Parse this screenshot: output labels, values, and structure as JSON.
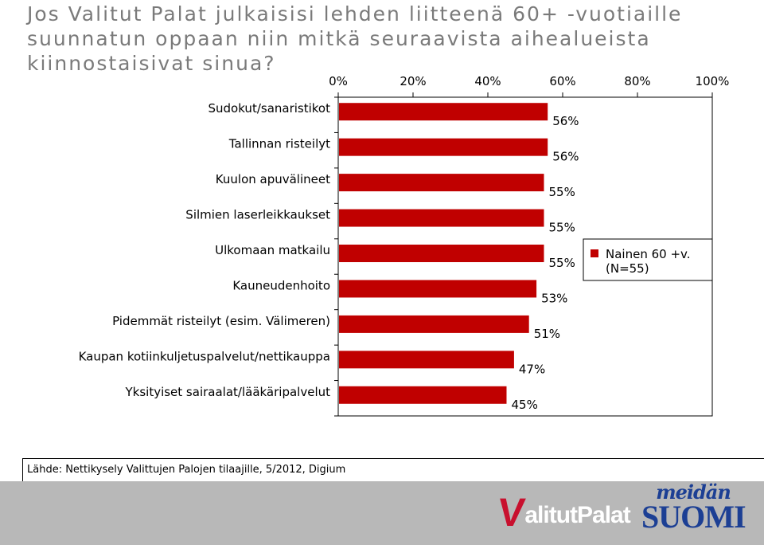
{
  "title": {
    "line1": "Jos Valitut Palat julkaisisi lehden liitteenä 60+ -vuotiaille",
    "line2": "suunnatun oppaan niin mitkä seuraavista aihealueista",
    "line3": "kiinnostaisivat sinua?"
  },
  "chart_data": {
    "type": "bar",
    "orientation": "horizontal",
    "title": "Jos Valitut Palat julkaisisi lehden liitteenä 60+ -vuotiaille suunnatun oppaan niin mitkä seuraavista aihealueista kiinnostaisivat sinua?",
    "categories": [
      "Sudokut/sanaristikot",
      "Tallinnan risteilyt",
      "Kuulon apuvälineet",
      "Silmien laserleikkaukset",
      "Ulkomaan matkailu",
      "Kauneudenhoito",
      "Pidemmät risteilyt (esim. Välimeren)",
      "Kaupan kotiinkuljetuspalvelut/nettikauppa",
      "Yksityiset sairaalat/lääkäripalvelut"
    ],
    "series": [
      {
        "name": "Nainen 60 +v. (N=55)",
        "values": [
          56,
          56,
          55,
          55,
          55,
          53,
          51,
          47,
          45
        ],
        "labels": [
          "56%",
          "56%",
          "55%",
          "55%",
          "55%",
          "53%",
          "51%",
          "47%",
          "45%"
        ],
        "color": "#c00000"
      }
    ],
    "xlim": [
      0,
      100
    ],
    "xticks": [
      "0%",
      "20%",
      "40%",
      "60%",
      "80%",
      "100%"
    ],
    "legend": {
      "line1": "Nainen  60 +v.",
      "line2": "(N=55)",
      "position": "right"
    },
    "grid": false
  },
  "source": "Lähde: Nettikysely Valittujen Palojen tilaajille, 5/2012, Digium",
  "logos": {
    "valitut_palat": {
      "v": "V",
      "rest": "alitutPalat"
    },
    "meidan_suomi": {
      "small": "meidän",
      "big": "SUOMI"
    }
  },
  "colors": {
    "bar": "#c00000",
    "title": "#7a7a7a",
    "footer": "#b8b8b8",
    "logo_red": "#c8102e",
    "logo_blue": "#1c3f94"
  }
}
